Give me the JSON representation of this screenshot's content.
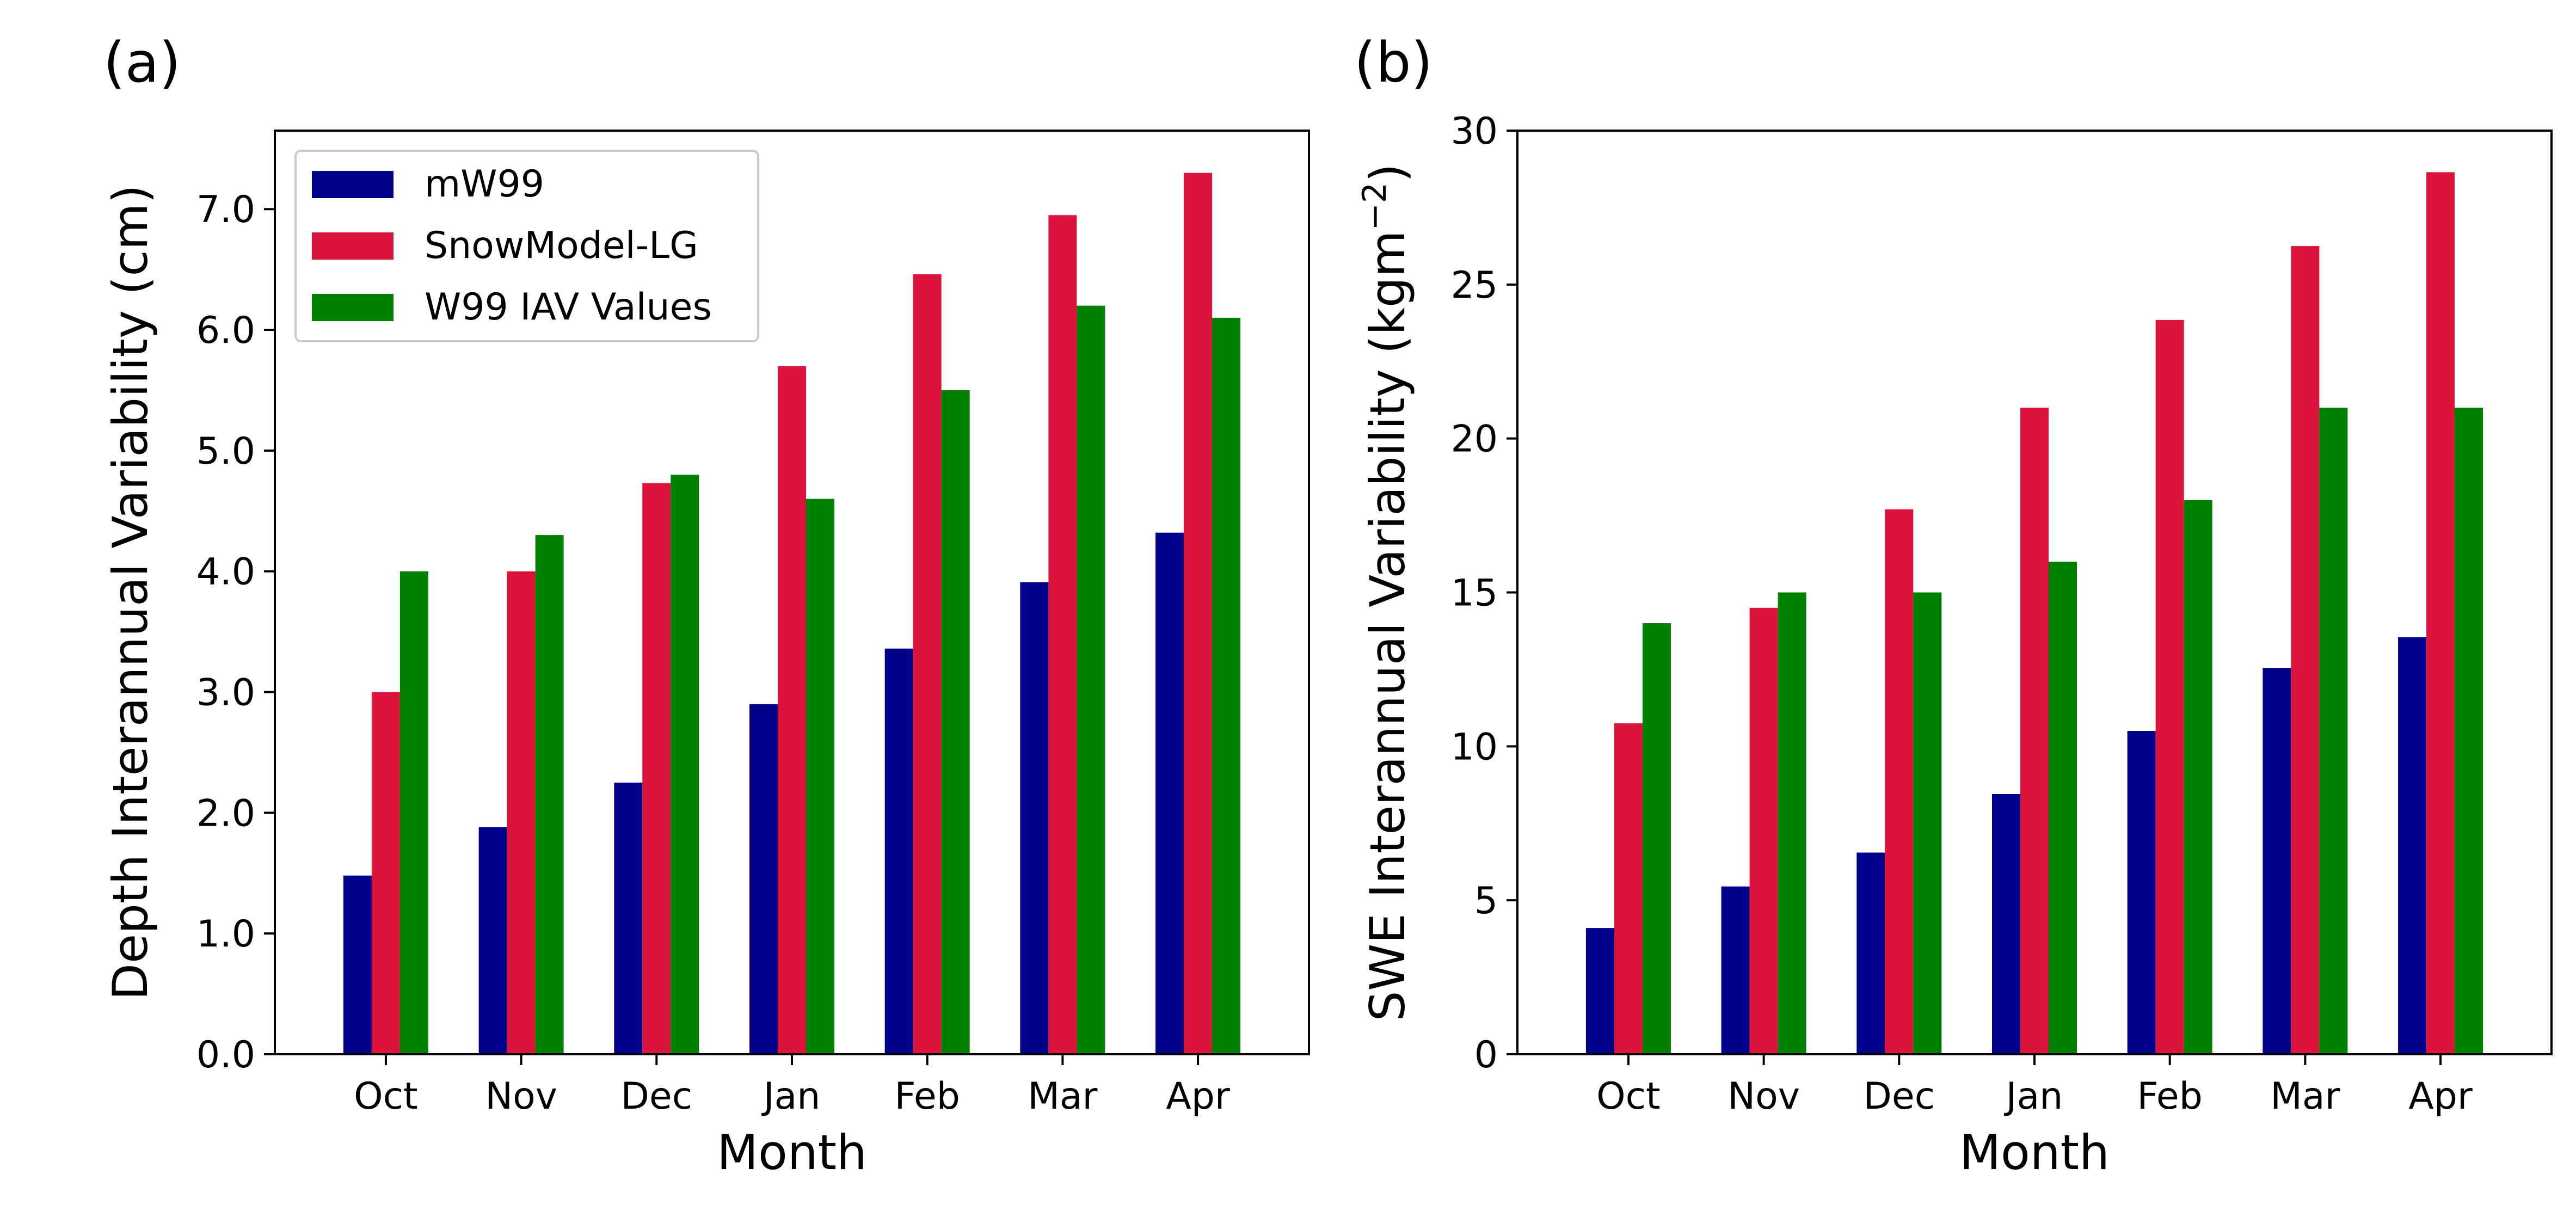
{
  "chart_data": [
    {
      "type": "bar",
      "panel_label": "(a)",
      "categories": [
        "Oct",
        "Nov",
        "Dec",
        "Jan",
        "Feb",
        "Mar",
        "Apr"
      ],
      "series": [
        {
          "name": "mW99",
          "color": "#00008b",
          "values": [
            1.48,
            1.88,
            2.25,
            2.9,
            3.36,
            3.91,
            4.32
          ]
        },
        {
          "name": "SnowModel-LG",
          "color": "#dc143c",
          "values": [
            3.0,
            4.0,
            4.73,
            5.7,
            6.46,
            6.95,
            7.3
          ]
        },
        {
          "name": "W99 IAV Values",
          "color": "#008000",
          "values": [
            4.0,
            4.3,
            4.8,
            4.6,
            5.5,
            6.2,
            6.1
          ]
        }
      ],
      "xlabel": "Month",
      "ylabel": "Depth Interannual Variability (cm)",
      "ylim": [
        0,
        7.65
      ],
      "yticks": [
        "0.0",
        "1.0",
        "2.0",
        "3.0",
        "4.0",
        "5.0",
        "6.0",
        "7.0"
      ],
      "grid": false,
      "legend": "upper-left"
    },
    {
      "type": "bar",
      "panel_label": "(b)",
      "categories": [
        "Oct",
        "Nov",
        "Dec",
        "Jan",
        "Feb",
        "Mar",
        "Apr"
      ],
      "series": [
        {
          "name": "mW99",
          "color": "#00008b",
          "values": [
            4.1,
            5.45,
            6.55,
            8.45,
            10.5,
            12.55,
            13.55
          ]
        },
        {
          "name": "SnowModel-LG",
          "color": "#dc143c",
          "values": [
            10.75,
            14.5,
            17.7,
            21.0,
            23.85,
            26.25,
            28.65
          ]
        },
        {
          "name": "W99 IAV Values",
          "color": "#008000",
          "values": [
            14.0,
            15.0,
            15.0,
            16.0,
            18.0,
            21.0,
            21.0
          ]
        }
      ],
      "xlabel": "Month",
      "ylabel_prefix": "SWE Interannual Variability (kgm",
      "ylabel_exponent": "−2",
      "ylabel_suffix": ")",
      "ylim": [
        0,
        30
      ],
      "yticks": [
        "0",
        "5",
        "10",
        "15",
        "20",
        "25",
        "30"
      ],
      "grid": false,
      "legend": "none"
    }
  ]
}
